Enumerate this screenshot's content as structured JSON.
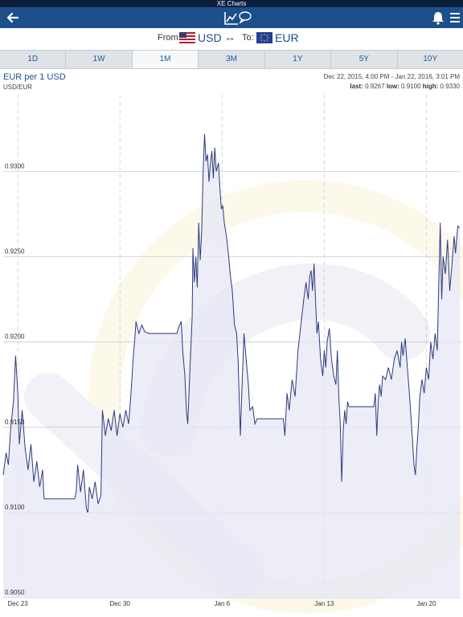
{
  "app": {
    "title": "XE Charts"
  },
  "icons": {
    "back": "back-arrow-icon",
    "chart": "chart-comment-icon",
    "bell": "bell-icon",
    "menu": "menu-icon"
  },
  "currency": {
    "from_label": "From:",
    "from_code": "USD",
    "to_label": "To:",
    "to_code": "EUR"
  },
  "tabs": [
    {
      "label": "1D"
    },
    {
      "label": "1W"
    },
    {
      "label": "1M",
      "active": true
    },
    {
      "label": "3M"
    },
    {
      "label": "1Y"
    },
    {
      "label": "5Y"
    },
    {
      "label": "10Y"
    }
  ],
  "colors": {
    "nav": "#1d4f8a",
    "line": "#2e3a7c",
    "fill": "#e8e9f5",
    "accent": "#1d5a9a"
  },
  "chart_header": {
    "title": "EUR per 1 USD",
    "pair": "USD/EUR",
    "range": "Dec 22, 2015, 4:00 PM - Jan 22, 2016, 3:01 PM",
    "last_label": "last:",
    "last": "0.9267",
    "low_label": "low:",
    "low": "0.9100",
    "high_label": "high:",
    "high": "0.9330"
  },
  "chart_data": {
    "type": "area",
    "title": "EUR per 1 USD",
    "xlabel": "",
    "ylabel": "",
    "ylim": [
      0.905,
      0.9345
    ],
    "xlim": [
      0,
      31.4
    ],
    "grid": true,
    "y_ticks": [
      {
        "value": 0.905,
        "label": "0.9050"
      },
      {
        "value": 0.91,
        "label": "0.9100"
      },
      {
        "value": 0.915,
        "label": "0.9150"
      },
      {
        "value": 0.92,
        "label": "0.9200"
      },
      {
        "value": 0.925,
        "label": "0.9250"
      },
      {
        "value": 0.93,
        "label": "0.9300"
      }
    ],
    "x_ticks": [
      {
        "value": 1,
        "label": "Dec 23"
      },
      {
        "value": 8,
        "label": "Dec 30"
      },
      {
        "value": 15,
        "label": "Jan 6"
      },
      {
        "value": 22,
        "label": "Jan 13"
      },
      {
        "value": 29,
        "label": "Jan 20"
      }
    ],
    "points": [
      [
        0.0,
        0.9122
      ],
      [
        0.2,
        0.9135
      ],
      [
        0.35,
        0.9128
      ],
      [
        0.5,
        0.9148
      ],
      [
        0.7,
        0.9165
      ],
      [
        0.85,
        0.9192
      ],
      [
        1.0,
        0.917
      ],
      [
        1.1,
        0.914
      ],
      [
        1.3,
        0.916
      ],
      [
        1.5,
        0.9138
      ],
      [
        1.7,
        0.9125
      ],
      [
        1.9,
        0.914
      ],
      [
        2.1,
        0.9118
      ],
      [
        2.3,
        0.913
      ],
      [
        2.5,
        0.9115
      ],
      [
        2.7,
        0.9125
      ],
      [
        2.8,
        0.9108
      ],
      [
        3.0,
        0.9108
      ],
      [
        4.0,
        0.9108
      ],
      [
        4.9,
        0.9108
      ],
      [
        5.0,
        0.9112
      ],
      [
        5.1,
        0.9128
      ],
      [
        5.3,
        0.9112
      ],
      [
        5.5,
        0.9125
      ],
      [
        5.7,
        0.9102
      ],
      [
        5.8,
        0.91
      ],
      [
        5.9,
        0.9115
      ],
      [
        6.1,
        0.9108
      ],
      [
        6.3,
        0.9118
      ],
      [
        6.5,
        0.9105
      ],
      [
        6.7,
        0.911
      ],
      [
        6.8,
        0.916
      ],
      [
        7.0,
        0.9145
      ],
      [
        7.2,
        0.9155
      ],
      [
        7.4,
        0.9148
      ],
      [
        7.6,
        0.916
      ],
      [
        7.8,
        0.9145
      ],
      [
        8.0,
        0.9158
      ],
      [
        8.2,
        0.915
      ],
      [
        8.4,
        0.916
      ],
      [
        8.6,
        0.9152
      ],
      [
        8.8,
        0.9175
      ],
      [
        8.9,
        0.919
      ],
      [
        9.0,
        0.92
      ],
      [
        9.1,
        0.9212
      ],
      [
        9.3,
        0.9205
      ],
      [
        9.5,
        0.921
      ],
      [
        9.7,
        0.9206
      ],
      [
        10.0,
        0.9205
      ],
      [
        11.0,
        0.9205
      ],
      [
        11.9,
        0.9205
      ],
      [
        12.0,
        0.9208
      ],
      [
        12.2,
        0.9212
      ],
      [
        12.3,
        0.9195
      ],
      [
        12.45,
        0.918
      ],
      [
        12.55,
        0.916
      ],
      [
        12.65,
        0.9152
      ],
      [
        12.8,
        0.9185
      ],
      [
        12.95,
        0.9215
      ],
      [
        13.0,
        0.9255
      ],
      [
        13.1,
        0.9235
      ],
      [
        13.2,
        0.925
      ],
      [
        13.3,
        0.9232
      ],
      [
        13.4,
        0.927
      ],
      [
        13.5,
        0.9248
      ],
      [
        13.6,
        0.9265
      ],
      [
        13.7,
        0.93
      ],
      [
        13.8,
        0.9322
      ],
      [
        13.9,
        0.9306
      ],
      [
        14.0,
        0.931
      ],
      [
        14.1,
        0.9294
      ],
      [
        14.2,
        0.9305
      ],
      [
        14.3,
        0.9312
      ],
      [
        14.4,
        0.9296
      ],
      [
        14.5,
        0.9314
      ],
      [
        14.6,
        0.93
      ],
      [
        14.75,
        0.9305
      ],
      [
        14.85,
        0.929
      ],
      [
        14.95,
        0.9278
      ],
      [
        15.05,
        0.928
      ],
      [
        15.15,
        0.927
      ],
      [
        15.3,
        0.9262
      ],
      [
        15.45,
        0.925
      ],
      [
        15.55,
        0.924
      ],
      [
        15.7,
        0.923
      ],
      [
        15.85,
        0.921
      ],
      [
        16.0,
        0.9205
      ],
      [
        16.1,
        0.9188
      ],
      [
        16.25,
        0.9145
      ],
      [
        16.35,
        0.917
      ],
      [
        16.5,
        0.9205
      ],
      [
        16.65,
        0.919
      ],
      [
        16.8,
        0.9175
      ],
      [
        16.9,
        0.916
      ],
      [
        17.1,
        0.9162
      ],
      [
        17.25,
        0.9152
      ],
      [
        17.4,
        0.9155
      ],
      [
        18.0,
        0.9155
      ],
      [
        19.0,
        0.9155
      ],
      [
        19.2,
        0.9155
      ],
      [
        19.3,
        0.9145
      ],
      [
        19.45,
        0.917
      ],
      [
        19.6,
        0.916
      ],
      [
        19.8,
        0.9178
      ],
      [
        20.0,
        0.9168
      ],
      [
        20.2,
        0.9195
      ],
      [
        20.4,
        0.921
      ],
      [
        20.6,
        0.9225
      ],
      [
        20.75,
        0.9235
      ],
      [
        20.9,
        0.9225
      ],
      [
        21.0,
        0.9238
      ],
      [
        21.1,
        0.9242
      ],
      [
        21.2,
        0.923
      ],
      [
        21.3,
        0.9246
      ],
      [
        21.4,
        0.9225
      ],
      [
        21.5,
        0.9205
      ],
      [
        21.6,
        0.9212
      ],
      [
        21.75,
        0.919
      ],
      [
        21.9,
        0.918
      ],
      [
        22.0,
        0.9195
      ],
      [
        22.1,
        0.9185
      ],
      [
        22.2,
        0.92
      ],
      [
        22.35,
        0.9208
      ],
      [
        22.5,
        0.919
      ],
      [
        22.65,
        0.918
      ],
      [
        22.8,
        0.9175
      ],
      [
        22.9,
        0.9195
      ],
      [
        23.0,
        0.9168
      ],
      [
        23.1,
        0.9152
      ],
      [
        23.2,
        0.9118
      ],
      [
        23.3,
        0.9148
      ],
      [
        23.4,
        0.916
      ],
      [
        23.5,
        0.9152
      ],
      [
        23.6,
        0.9165
      ],
      [
        23.7,
        0.9162
      ],
      [
        24.0,
        0.9162
      ],
      [
        25.0,
        0.9162
      ],
      [
        25.4,
        0.9162
      ],
      [
        25.5,
        0.917
      ],
      [
        25.6,
        0.9145
      ],
      [
        25.7,
        0.9165
      ],
      [
        25.8,
        0.9175
      ],
      [
        25.9,
        0.9168
      ],
      [
        26.0,
        0.918
      ],
      [
        26.2,
        0.9178
      ],
      [
        26.4,
        0.9185
      ],
      [
        26.6,
        0.9178
      ],
      [
        26.8,
        0.919
      ],
      [
        27.0,
        0.9195
      ],
      [
        27.2,
        0.9185
      ],
      [
        27.3,
        0.92
      ],
      [
        27.4,
        0.9192
      ],
      [
        27.55,
        0.9202
      ],
      [
        27.7,
        0.9185
      ],
      [
        27.85,
        0.9168
      ],
      [
        27.95,
        0.9155
      ],
      [
        28.05,
        0.9142
      ],
      [
        28.15,
        0.9128
      ],
      [
        28.25,
        0.9122
      ],
      [
        28.35,
        0.9138
      ],
      [
        28.45,
        0.915
      ],
      [
        28.55,
        0.9168
      ],
      [
        28.7,
        0.9178
      ],
      [
        28.85,
        0.917
      ],
      [
        29.0,
        0.9185
      ],
      [
        29.15,
        0.9178
      ],
      [
        29.3,
        0.92
      ],
      [
        29.45,
        0.919
      ],
      [
        29.6,
        0.9205
      ],
      [
        29.75,
        0.9195
      ],
      [
        29.85,
        0.9235
      ],
      [
        29.95,
        0.927
      ],
      [
        30.05,
        0.9225
      ],
      [
        30.15,
        0.925
      ],
      [
        30.3,
        0.924
      ],
      [
        30.45,
        0.926
      ],
      [
        30.6,
        0.923
      ],
      [
        30.75,
        0.9245
      ],
      [
        30.9,
        0.9262
      ],
      [
        31.0,
        0.9252
      ],
      [
        31.15,
        0.9268
      ],
      [
        31.3,
        0.9267
      ]
    ]
  }
}
